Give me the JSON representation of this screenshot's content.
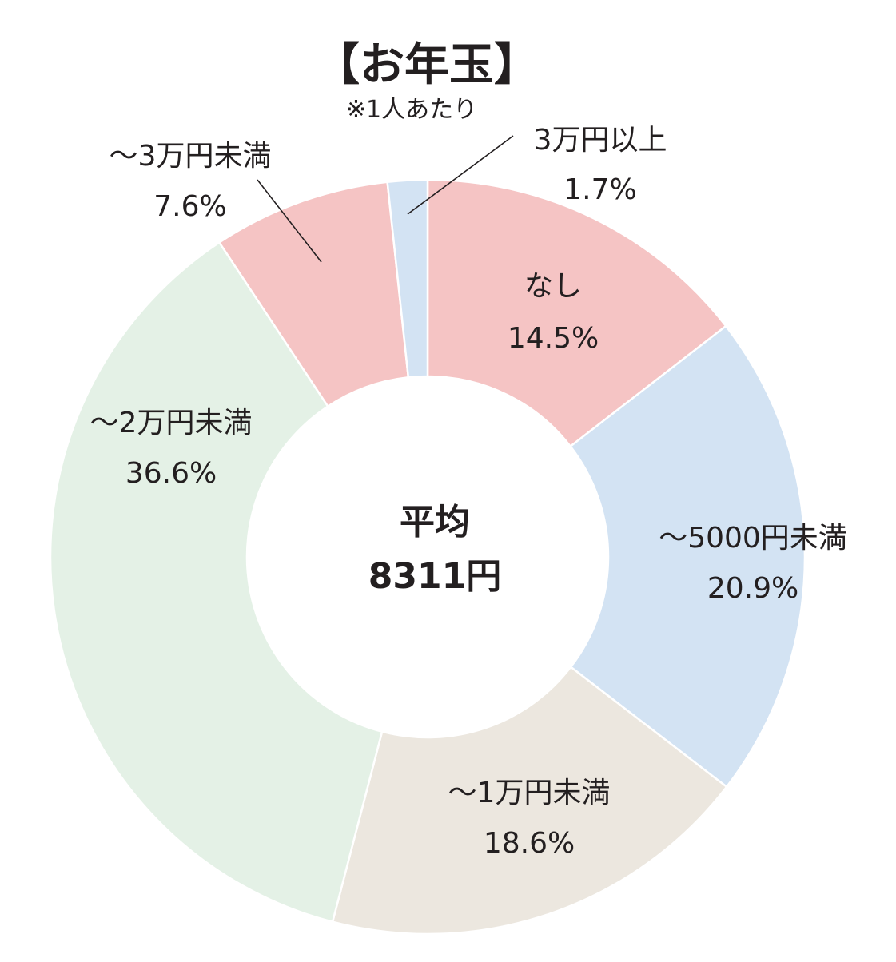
{
  "chart_data": {
    "type": "pie",
    "variant": "donut",
    "title": "【お年玉】",
    "subtitle": "※1人あたり",
    "center": {
      "line1": "平均",
      "line2": "8311円"
    },
    "slices": [
      {
        "key": "none",
        "label": "なし",
        "value": 14.5,
        "value_label": "14.5%",
        "color": "#f5c4c4"
      },
      {
        "key": "under5000",
        "label": "～5000円未満",
        "value": 20.9,
        "value_label": "20.9%",
        "color": "#d3e3f3"
      },
      {
        "key": "under10000",
        "label": "～1万円未満",
        "value": 18.6,
        "value_label": "18.6%",
        "color": "#ece7df"
      },
      {
        "key": "under20000",
        "label": "～2万円未満",
        "value": 36.6,
        "value_label": "36.6%",
        "color": "#e4f1e6"
      },
      {
        "key": "under30000",
        "label": "～3万円未満",
        "value": 7.6,
        "value_label": "7.6%",
        "color": "#f5c4c4"
      },
      {
        "key": "over30000",
        "label": "3万円以上",
        "value": 1.7,
        "value_label": "1.7%",
        "color": "#d3e3f3"
      }
    ]
  }
}
